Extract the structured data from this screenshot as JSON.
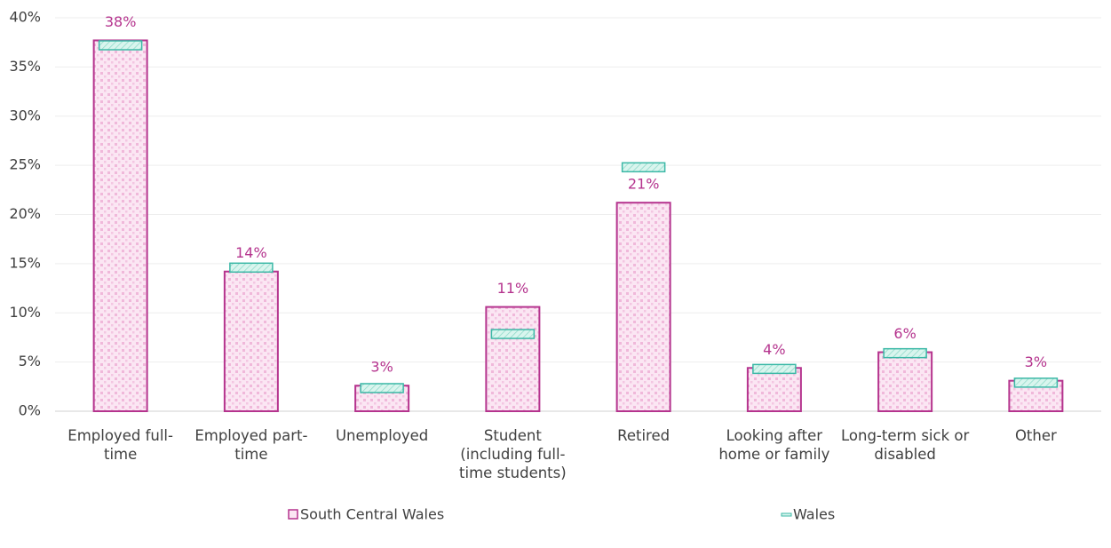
{
  "chart_data": {
    "type": "bar",
    "categories": [
      "Employed full-time",
      "Employed part-time",
      "Unemployed",
      "Student (including full-time students)",
      "Retired",
      "Looking after home or family",
      "Long-term sick or disabled",
      "Other"
    ],
    "series": [
      {
        "name": "South Central Wales",
        "color": "#b5348e",
        "values": [
          37.7,
          14.2,
          2.6,
          10.6,
          21.2,
          4.4,
          6.0,
          3.1
        ],
        "value_labels": [
          "38%",
          "14%",
          "3%",
          "11%",
          "21%",
          "4%",
          "6%",
          "3%"
        ]
      },
      {
        "name": "Wales",
        "color": "#3bb8a6",
        "values": [
          37.2,
          14.6,
          2.35,
          7.85,
          24.8,
          4.3,
          5.9,
          2.9
        ]
      }
    ],
    "ylim": [
      0,
      40
    ],
    "yticks": [
      {
        "value": 0,
        "label": "0%"
      },
      {
        "value": 5,
        "label": "5%"
      },
      {
        "value": 10,
        "label": "10%"
      },
      {
        "value": 15,
        "label": "15%"
      },
      {
        "value": 20,
        "label": "20%"
      },
      {
        "value": 25,
        "label": "25%"
      },
      {
        "value": 30,
        "label": "30%"
      },
      {
        "value": 35,
        "label": "35%"
      },
      {
        "value": 40,
        "label": "40%"
      }
    ],
    "grid": true
  }
}
